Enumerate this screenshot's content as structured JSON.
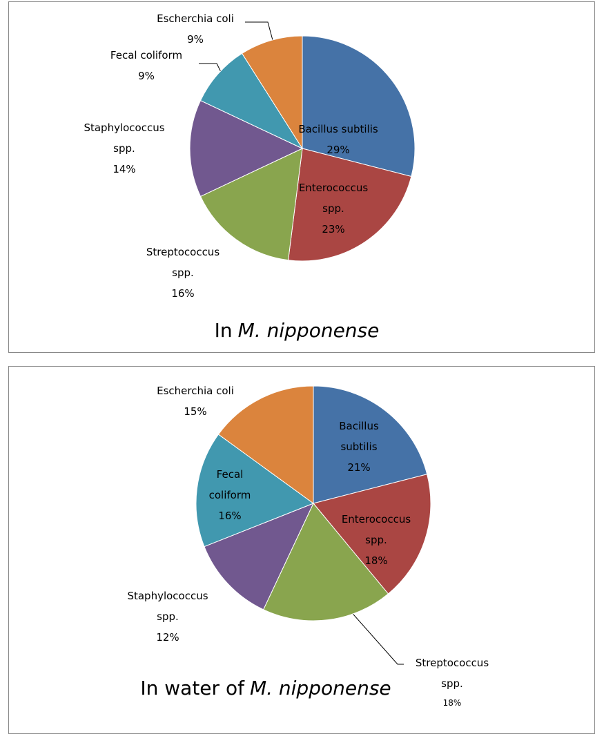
{
  "chart_data": [
    {
      "type": "pie",
      "title": [
        "In",
        "M. nipponense"
      ],
      "categories": [
        "Bacillus subtilis",
        "Enterococcus spp.",
        "Streptococcus spp.",
        "Staphylococcus spp.",
        "Fecal coliform",
        "Escherchia coli"
      ],
      "values": [
        29,
        23,
        16,
        14,
        9,
        9
      ],
      "value_labels": [
        "29%",
        "23%",
        "16%",
        "14%",
        "9%",
        "9%"
      ],
      "colors": [
        "#4572a7",
        "#aa4643",
        "#89a54e",
        "#71588f",
        "#4198af",
        "#db843d"
      ]
    },
    {
      "type": "pie",
      "title": [
        "In water of",
        "M. nipponense"
      ],
      "categories": [
        "Bacillus subtilis",
        "Enterococcus spp.",
        "Streptococcus spp.",
        "Staphylococcus spp.",
        "Fecal coliform",
        "Escherchia coli"
      ],
      "values": [
        21,
        18,
        18,
        12,
        16,
        15
      ],
      "value_labels": [
        "21%",
        "18%",
        "18%",
        "12%",
        "16%",
        "15%"
      ],
      "colors": [
        "#4572a7",
        "#aa4643",
        "#89a54e",
        "#71588f",
        "#4198af",
        "#db843d"
      ]
    }
  ]
}
